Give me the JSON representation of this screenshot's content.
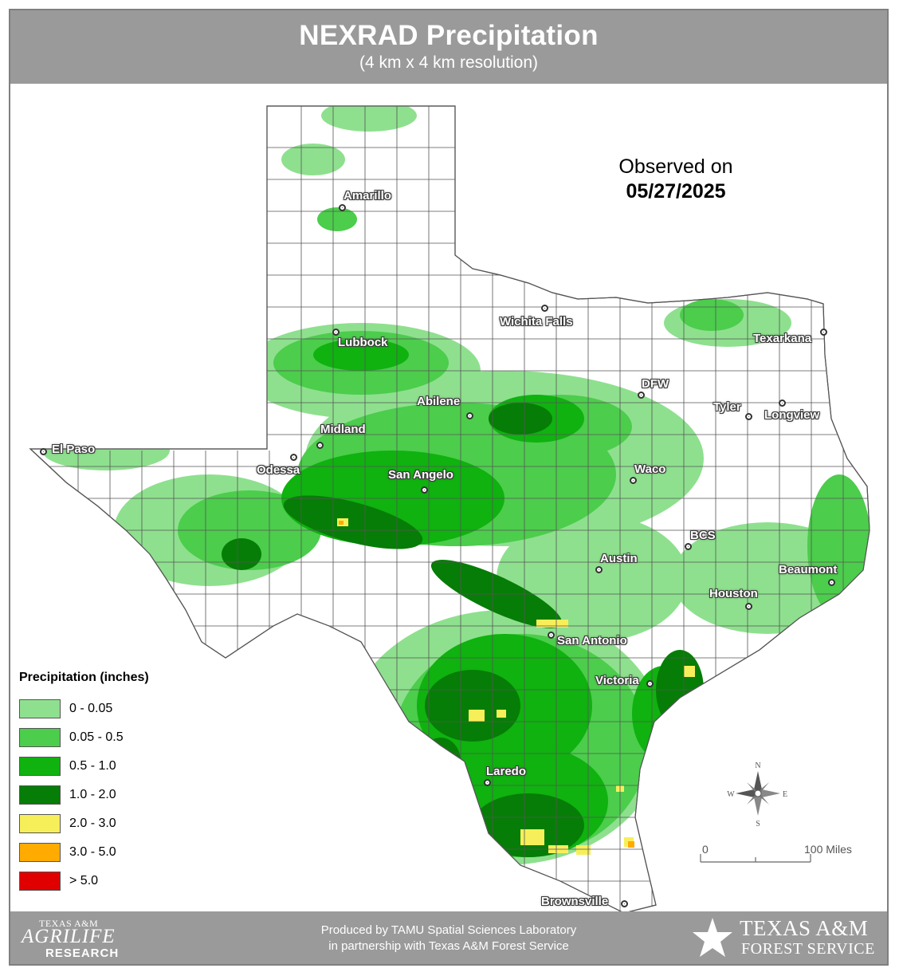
{
  "header": {
    "title": "NEXRAD Precipitation",
    "subtitle": "(4 km x 4 km resolution)"
  },
  "observed": {
    "label": "Observed on",
    "date": "05/27/2025"
  },
  "legend": {
    "title": "Precipitation (inches)",
    "items": [
      {
        "label": "0 - 0.05",
        "color": "#8ee08e"
      },
      {
        "label": "0.05 - 0.5",
        "color": "#4ccd4c"
      },
      {
        "label": "0.5 - 1.0",
        "color": "#0fb20f"
      },
      {
        "label": "1.0 - 2.0",
        "color": "#067d06"
      },
      {
        "label": "2.0 - 3.0",
        "color": "#f7ef5a"
      },
      {
        "label": "3.0 - 5.0",
        "color": "#ffab00"
      },
      {
        "label": "> 5.0",
        "color": "#e00000"
      }
    ]
  },
  "cities": [
    {
      "name": "Amarillo"
    },
    {
      "name": "Lubbock"
    },
    {
      "name": "Wichita Falls"
    },
    {
      "name": "Texarkana"
    },
    {
      "name": "DFW"
    },
    {
      "name": "Abilene"
    },
    {
      "name": "Tyler"
    },
    {
      "name": "Longview"
    },
    {
      "name": "El Paso"
    },
    {
      "name": "Midland"
    },
    {
      "name": "Odessa"
    },
    {
      "name": "San Angelo"
    },
    {
      "name": "Waco"
    },
    {
      "name": "BCS"
    },
    {
      "name": "Austin"
    },
    {
      "name": "Beaumont"
    },
    {
      "name": "Houston"
    },
    {
      "name": "San Antonio"
    },
    {
      "name": "Victoria"
    },
    {
      "name": "Laredo"
    },
    {
      "name": "Brownsville"
    }
  ],
  "compass": {
    "n": "N",
    "s": "S",
    "e": "E",
    "w": "W"
  },
  "scale": {
    "start": "0",
    "end": "100 Miles"
  },
  "footer": {
    "line1": "Produced by TAMU Spatial Sciences Laboratory",
    "line2": "in partnership with Texas A&M Forest Service",
    "agrilife_l1": "TEXAS A&M",
    "agrilife_l2": "AGRILIFE",
    "agrilife_l3": "RESEARCH",
    "tfs_l1": "TEXAS A&M",
    "tfs_l2": "FOREST SERVICE"
  }
}
